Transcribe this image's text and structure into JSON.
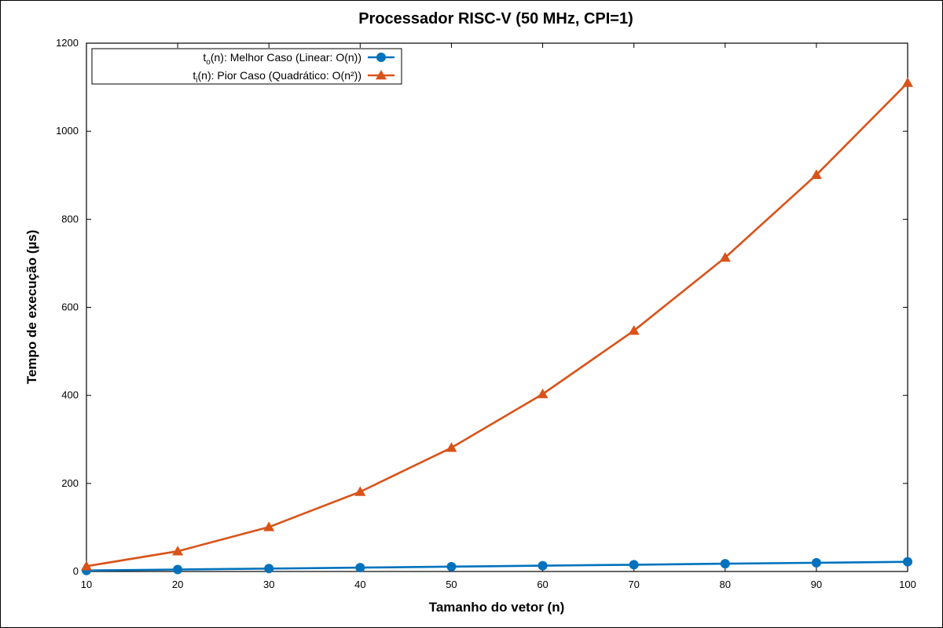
{
  "chart_data": {
    "type": "line",
    "title": "Processador RISC-V (50 MHz, CPI=1)",
    "xlabel": "Tamanho do vetor (n)",
    "ylabel": "Tempo de execução (µs)",
    "xlim": [
      10,
      100
    ],
    "ylim": [
      0,
      1200
    ],
    "xticks": [
      10,
      20,
      30,
      40,
      50,
      60,
      70,
      80,
      90,
      100
    ],
    "yticks": [
      0,
      200,
      400,
      600,
      800,
      1000,
      1200
    ],
    "grid": false,
    "legend_position": "top-left",
    "x": [
      10,
      20,
      30,
      40,
      50,
      60,
      70,
      80,
      90,
      100
    ],
    "series": [
      {
        "legend_base": "t",
        "legend_sub": "o",
        "legend_rest": "(n): Melhor Caso (Linear: O(n))",
        "color": "#0072bd",
        "marker": "circle",
        "values": [
          2.2,
          4.4,
          6.6,
          8.8,
          11.0,
          13.2,
          15.4,
          17.6,
          19.8,
          22.0
        ]
      },
      {
        "legend_base": "t",
        "legend_sub": "i",
        "legend_rest": "(n): Pior Caso (Quadrático: O(n²))",
        "color": "#d95319",
        "marker": "triangle",
        "values": [
          12,
          46,
          101,
          181,
          281,
          403,
          547,
          713,
          901,
          1110
        ]
      }
    ]
  }
}
